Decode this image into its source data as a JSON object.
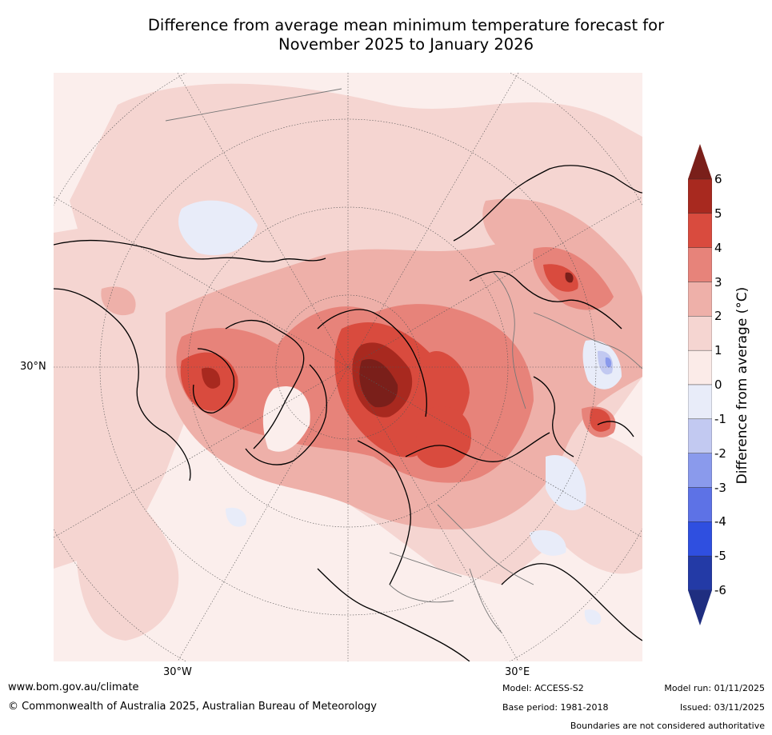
{
  "title_line1": "Difference from average mean minimum temperature forecast for",
  "title_line2": "November 2025 to January 2026",
  "lat_label": "30°N",
  "lon_labels": [
    "30°W",
    "30°E"
  ],
  "colorbar": {
    "label": "Difference from average (°C)",
    "ticks": [
      "6",
      "5",
      "4",
      "3",
      "2",
      "1",
      "0",
      "-1",
      "-2",
      "-3",
      "-4",
      "-5",
      "-6"
    ],
    "colors": [
      "#7a1f1a",
      "#a8291f",
      "#d94b3e",
      "#e7837a",
      "#eeb0a9",
      "#f5d5d1",
      "#fbebe8",
      "#e8ecf9",
      "#c2c9f1",
      "#8a9aec",
      "#5d72e6",
      "#2f4fe0",
      "#233aa6",
      "#1f2e80"
    ]
  },
  "footer": {
    "url": "www.bom.gov.au/climate",
    "copyright": "© Commonwealth of Australia 2025, Australian Bureau of Meteorology",
    "model": "Model: ACCESS-S2",
    "base_period": "Base period: 1981-2018",
    "model_run": "Model run: 01/11/2025",
    "issued": "Issued: 03/11/2025",
    "disclaimer": "Boundaries are not considered authoritative"
  }
}
